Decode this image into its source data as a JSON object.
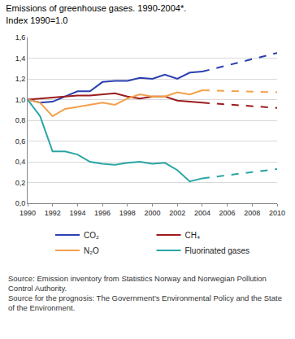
{
  "chart_data": {
    "type": "line",
    "title": [
      "Emissions of greenhouse gases. 1990-2004*.",
      "Index 1990=1.0"
    ],
    "x": [
      1990,
      1991,
      1992,
      1993,
      1994,
      1995,
      1996,
      1997,
      1998,
      1999,
      2000,
      2001,
      2002,
      2003,
      2004
    ],
    "series": [
      {
        "name": "CO₂",
        "color": "#2b3fb0",
        "values": [
          1.0,
          0.97,
          0.98,
          1.03,
          1.08,
          1.08,
          1.17,
          1.18,
          1.18,
          1.21,
          1.2,
          1.24,
          1.2,
          1.26,
          1.27
        ],
        "projection": [
          1.27,
          1.45
        ]
      },
      {
        "name": "CH₄",
        "color": "#9b1c1c",
        "values": [
          1.0,
          1.01,
          1.02,
          1.03,
          1.04,
          1.04,
          1.05,
          1.06,
          1.03,
          1.01,
          1.03,
          1.03,
          0.99,
          0.98,
          0.97
        ],
        "projection": [
          0.97,
          0.92
        ]
      },
      {
        "name": "N₂O",
        "color": "#f5a04a",
        "values": [
          1.0,
          0.97,
          0.84,
          0.91,
          0.93,
          0.95,
          0.97,
          0.95,
          1.01,
          1.05,
          1.03,
          1.03,
          1.07,
          1.05,
          1.09
        ],
        "projection": [
          1.09,
          1.07
        ]
      },
      {
        "name": "Fluorinated gases",
        "color": "#2aa5a5",
        "values": [
          1.0,
          0.84,
          0.5,
          0.5,
          0.47,
          0.4,
          0.38,
          0.37,
          0.39,
          0.4,
          0.38,
          0.39,
          0.32,
          0.21,
          0.24
        ],
        "projection": [
          0.24,
          0.33
        ]
      }
    ],
    "projection": {
      "x": [
        2004,
        2010
      ],
      "line_style": "dash"
    },
    "xlim": [
      1990,
      2010
    ],
    "xticks": [
      1990,
      1992,
      1994,
      1996,
      1998,
      2000,
      2002,
      2004,
      2006,
      2008,
      2010
    ],
    "ylim": [
      0,
      1.6
    ],
    "yticks": [
      {
        "value": 0,
        "label": "0,0"
      },
      {
        "value": 0.2,
        "label": "0,2"
      },
      {
        "value": 0.4,
        "label": "0,4"
      },
      {
        "value": 0.6,
        "label": "0,6"
      },
      {
        "value": 0.8,
        "label": "0,8"
      },
      {
        "value": 1.0,
        "label": "1,0"
      },
      {
        "value": 1.2,
        "label": "1,2"
      },
      {
        "value": 1.4,
        "label": "1,4"
      },
      {
        "value": 1.6,
        "label": "1,6"
      }
    ],
    "grid": true,
    "legend": "bottom",
    "sources": [
      "Source: Emission inventory from Statistics Norway and Norwegian Pollution Control Authority.",
      "Source for the prognosis: The Government's Environmental Policy and the State of the Environment."
    ]
  }
}
